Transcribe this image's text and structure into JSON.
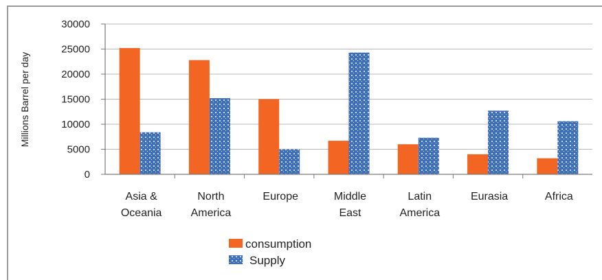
{
  "chart_data": {
    "type": "bar",
    "ylabel": "Millions Barrel per day",
    "ylim": [
      0,
      30000
    ],
    "yticks": [
      0,
      5000,
      10000,
      15000,
      20000,
      25000,
      30000
    ],
    "grid": true,
    "legend_position": "bottom-left",
    "categories": [
      [
        "Asia &",
        "Oceania"
      ],
      [
        "North",
        "America"
      ],
      [
        "Europe"
      ],
      [
        "Middle",
        "East"
      ],
      [
        "Latin",
        "America"
      ],
      [
        "Eurasia"
      ],
      [
        "Africa"
      ]
    ],
    "series": [
      {
        "name": "consumption",
        "color": "#f26522",
        "pattern": "solid",
        "values": [
          25200,
          22800,
          15000,
          6700,
          6000,
          4000,
          3200
        ]
      },
      {
        "name": "Supply",
        "color": "#3f6fbf",
        "pattern": "dotted",
        "values": [
          8400,
          15200,
          5000,
          24300,
          7300,
          12700,
          10600
        ]
      }
    ]
  }
}
